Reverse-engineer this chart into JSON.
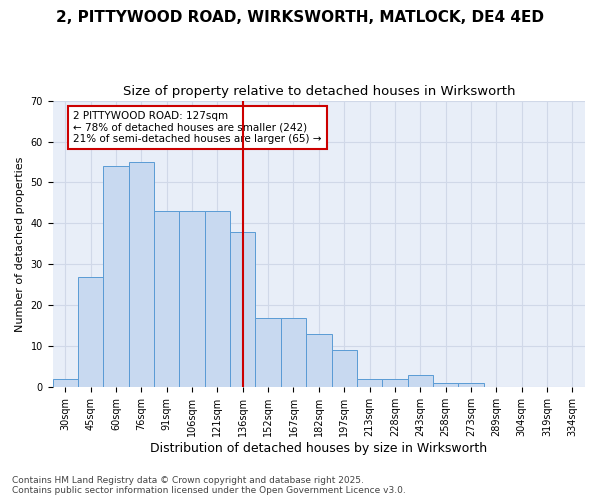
{
  "title1": "2, PITTYWOOD ROAD, WIRKSWORTH, MATLOCK, DE4 4ED",
  "title2": "Size of property relative to detached houses in Wirksworth",
  "xlabel": "Distribution of detached houses by size in Wirksworth",
  "ylabel": "Number of detached properties",
  "categories": [
    "30sqm",
    "45sqm",
    "60sqm",
    "76sqm",
    "91sqm",
    "106sqm",
    "121sqm",
    "136sqm",
    "152sqm",
    "167sqm",
    "182sqm",
    "197sqm",
    "213sqm",
    "228sqm",
    "243sqm",
    "258sqm",
    "273sqm",
    "289sqm",
    "304sqm",
    "319sqm",
    "334sqm"
  ],
  "values": [
    2,
    27,
    54,
    55,
    43,
    43,
    43,
    38,
    17,
    17,
    13,
    9,
    2,
    2,
    3,
    1,
    1,
    0,
    0,
    0,
    0
  ],
  "bar_color": "#c8d9f0",
  "bar_edge_color": "#5a9bd5",
  "vline_x": 7,
  "vline_color": "#cc0000",
  "annotation_text": "2 PITTYWOOD ROAD: 127sqm\n← 78% of detached houses are smaller (242)\n21% of semi-detached houses are larger (65) →",
  "annotation_box_color": "#ffffff",
  "annotation_box_edge": "#cc0000",
  "ylim": [
    0,
    70
  ],
  "yticks": [
    0,
    10,
    20,
    30,
    40,
    50,
    60,
    70
  ],
  "grid_color": "#d0d8e8",
  "bg_color": "#e8eef8",
  "footnote": "Contains HM Land Registry data © Crown copyright and database right 2025.\nContains public sector information licensed under the Open Government Licence v3.0.",
  "title1_fontsize": 11,
  "title2_fontsize": 9.5,
  "xlabel_fontsize": 9,
  "ylabel_fontsize": 8,
  "tick_fontsize": 7,
  "annot_fontsize": 7.5,
  "footnote_fontsize": 6.5
}
